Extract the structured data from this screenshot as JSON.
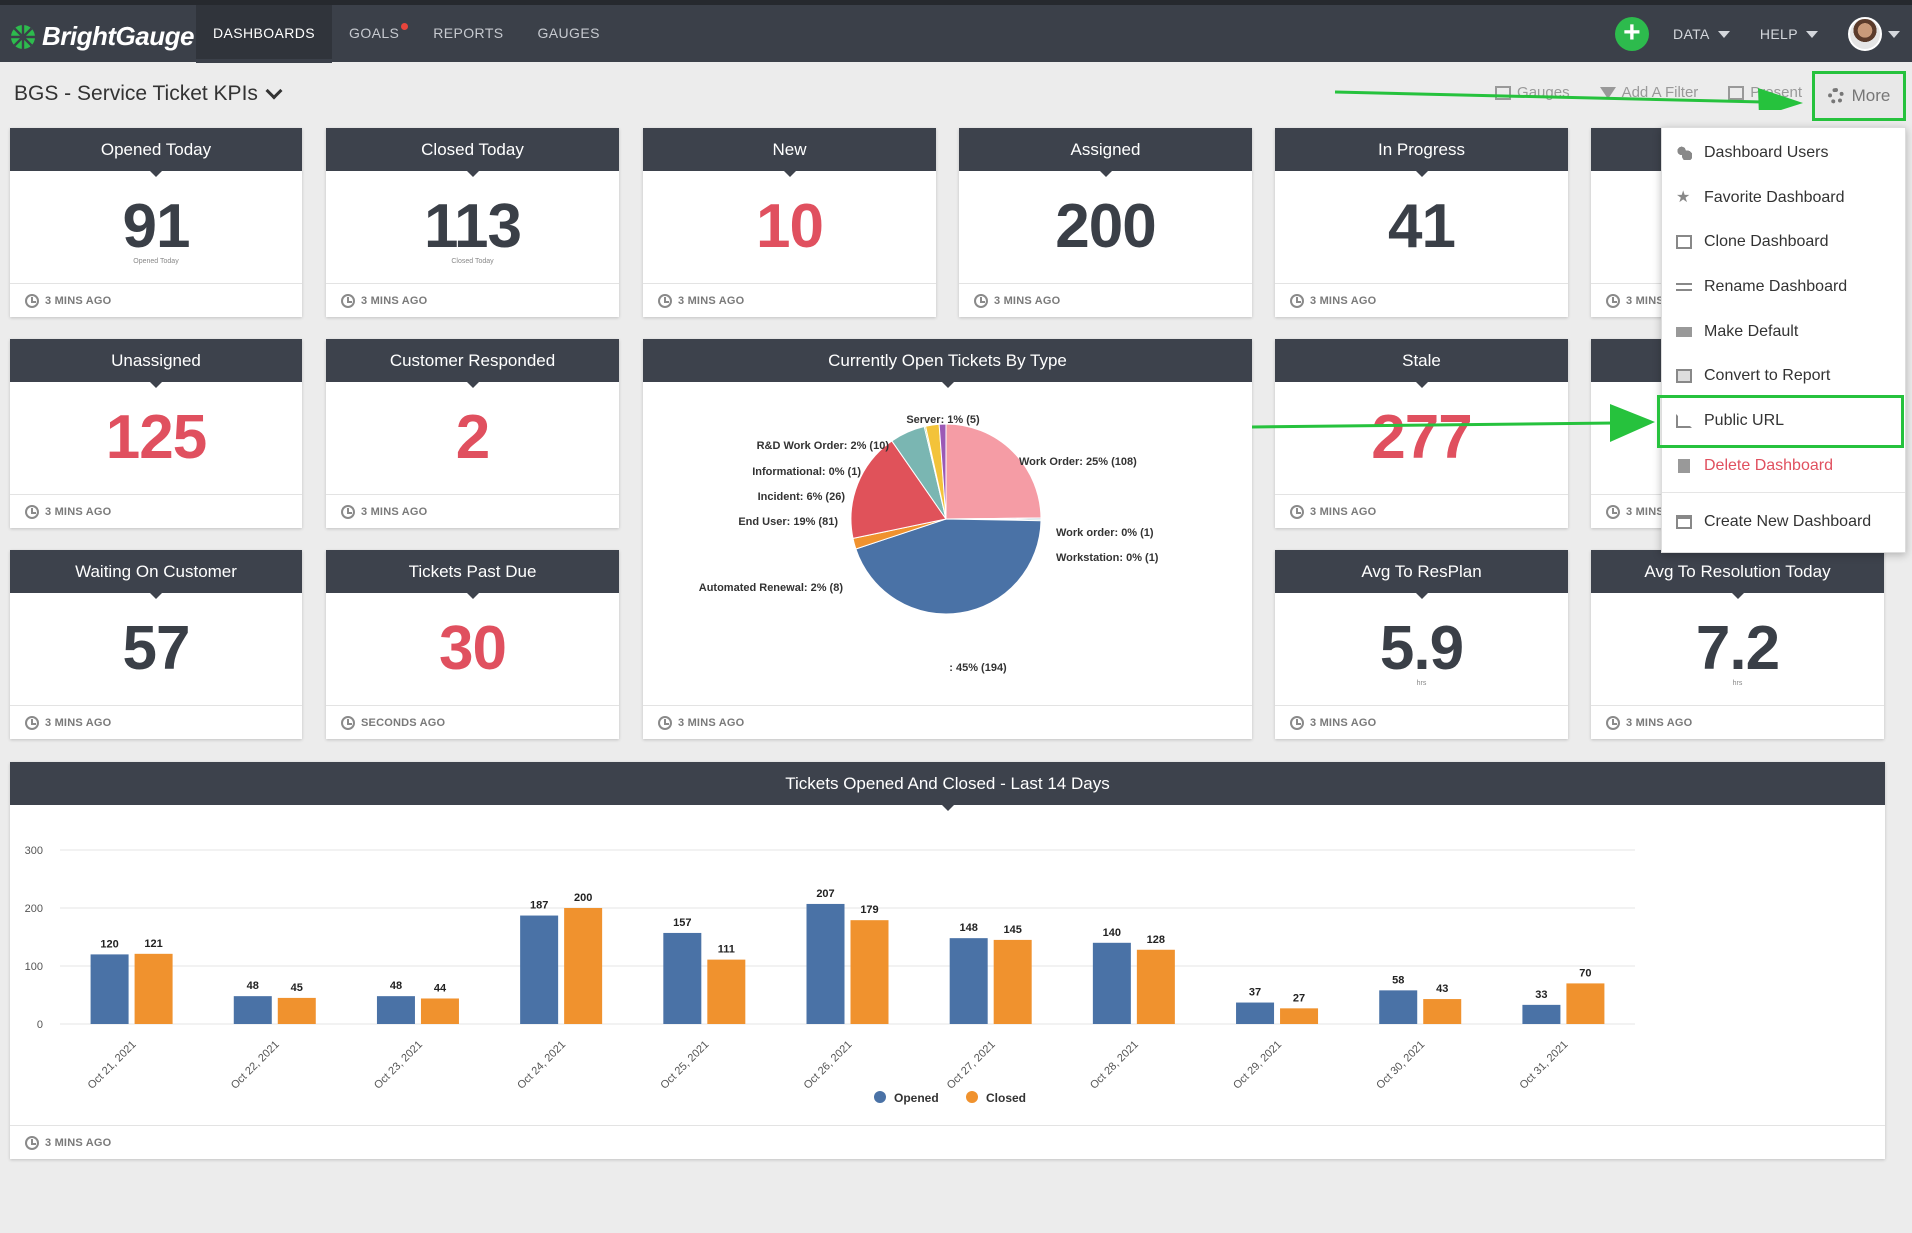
{
  "nav": {
    "logo": "BrightGauge",
    "links": [
      "DASHBOARDS",
      "GOALS",
      "REPORTS",
      "GAUGES"
    ],
    "data_label": "DATA",
    "help_label": "HELP"
  },
  "toolbar": {
    "dashboard_title": "BGS - Service Ticket KPIs",
    "gauges": "Gauges",
    "add_filter": "Add A Filter",
    "present": "Present",
    "more": "More"
  },
  "cards": {
    "opened_today": {
      "title": "Opened Today",
      "value": "91",
      "sub": "Opened Today",
      "updated": "3 MINS AGO"
    },
    "closed_today": {
      "title": "Closed Today",
      "value": "113",
      "sub": "Closed Today",
      "updated": "3 MINS AGO"
    },
    "new": {
      "title": "New",
      "value": "10",
      "updated": "3 MINS AGO"
    },
    "assigned": {
      "title": "Assigned",
      "value": "200",
      "updated": "3 MINS AGO"
    },
    "in_progress": {
      "title": "In Progress",
      "value": "41",
      "updated": "3 MINS AGO"
    },
    "hidden_top": {
      "updated": "3 MINS AGO"
    },
    "unassigned": {
      "title": "Unassigned",
      "value": "125",
      "updated": "3 MINS AGO"
    },
    "customer_responded": {
      "title": "Customer Responded",
      "value": "2",
      "updated": "3 MINS AGO"
    },
    "open_by_type": {
      "title": "Currently Open Tickets By Type",
      "updated": "3 MINS AGO"
    },
    "stale": {
      "title": "Stale",
      "value": "277",
      "updated": "3 MINS AGO"
    },
    "hidden_mid": {
      "updated": "3 MINS AGO"
    },
    "waiting_on_customer": {
      "title": "Waiting On Customer",
      "value": "57",
      "updated": "3 MINS AGO"
    },
    "tickets_past_due": {
      "title": "Tickets Past Due",
      "value": "30",
      "updated": "SECONDS AGO"
    },
    "avg_to_resplan": {
      "title": "Avg To ResPlan",
      "value": "5.9",
      "sub": "hrs",
      "updated": "3 MINS AGO"
    },
    "avg_to_resolution": {
      "title": "Avg To Resolution Today",
      "value": "7.2",
      "sub": "hrs",
      "updated": "3 MINS AGO"
    },
    "tickets_14_days": {
      "title": "Tickets Opened And Closed - Last 14 Days",
      "updated": "3 MINS AGO"
    }
  },
  "menu": {
    "items": [
      "Dashboard Users",
      "Favorite Dashboard",
      "Clone Dashboard",
      "Rename Dashboard",
      "Make Default",
      "Convert to Report",
      "Public URL",
      "Delete Dashboard",
      "Create New Dashboard"
    ]
  },
  "colors": {
    "opened": "#4a72a6",
    "closed": "#f0922e",
    "accent_green": "#26c23d",
    "danger": "#e0505f"
  },
  "chart_data": [
    {
      "type": "pie",
      "slices": [
        {
          "label": "Work Order: 25% (108)",
          "value": 108,
          "color": "#f59ca5"
        },
        {
          "label": "Work order: 0% (1)",
          "value": 1,
          "color": "#4a72a6"
        },
        {
          "label": "Workstation: 0% (1)",
          "value": 1,
          "color": "#3f8a8f"
        },
        {
          "label": ": 45% (194)",
          "value": 194,
          "color": "#4a72a6"
        },
        {
          "label": "Automated Renewal: 2% (8)",
          "value": 8,
          "color": "#f0922e"
        },
        {
          "label": "End User: 19% (81)",
          "value": 81,
          "color": "#e0525a"
        },
        {
          "label": "Incident: 6% (26)",
          "value": 26,
          "color": "#7ab6b2"
        },
        {
          "label": "Informational: 0% (1)",
          "value": 1,
          "color": "#8bc34a"
        },
        {
          "label": "R&D Work Order: 2% (10)",
          "value": 10,
          "color": "#f3c33a"
        },
        {
          "label": "Server: 1% (5)",
          "value": 5,
          "color": "#9b59b6"
        }
      ]
    },
    {
      "type": "bar",
      "categories": [
        "Oct 21, 2021",
        "Oct 22, 2021",
        "Oct 23, 2021",
        "Oct 24, 2021",
        "Oct 25, 2021",
        "Oct 26, 2021",
        "Oct 27, 2021",
        "Oct 28, 2021",
        "Oct 29, 2021",
        "Oct 30, 2021",
        "Oct 31, 2021"
      ],
      "series": [
        {
          "name": "Opened",
          "values": [
            120,
            48,
            48,
            187,
            157,
            207,
            148,
            140,
            37,
            58,
            33
          ]
        },
        {
          "name": "Closed",
          "values": [
            121,
            45,
            44,
            200,
            111,
            179,
            145,
            128,
            27,
            43,
            70
          ]
        }
      ],
      "yticks": [
        0,
        100,
        200,
        300
      ],
      "ylim": [
        0,
        300
      ],
      "legend": "bottom"
    }
  ]
}
